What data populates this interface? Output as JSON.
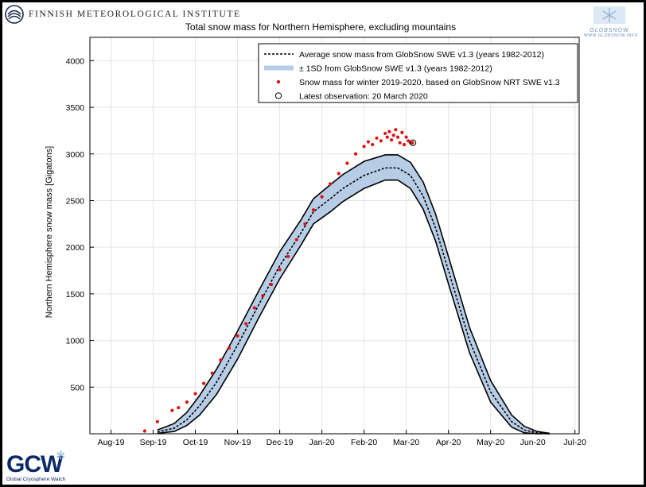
{
  "header": {
    "institute": "Finnish Meteorological Institute",
    "logo_right_name": "GLOBSNOW",
    "logo_right_url": "WWW.GLOBSNOW.INFO",
    "gcw_letters": "GCW",
    "gcw_subtitle": "Global Cryosphere Watch"
  },
  "chart_data": {
    "type": "line",
    "title": "Total snow mass for Northern Hemisphere, excluding mountains",
    "ylabel": "Northern Hemisphere snow mass [Gigatons]",
    "xlabel": "",
    "ylim": [
      0,
      4250
    ],
    "xlim": [
      0,
      11.6
    ],
    "yticks": [
      500,
      1000,
      1500,
      2000,
      2500,
      3000,
      3500,
      4000
    ],
    "xtick_labels": [
      "Aug-19",
      "Sep-19",
      "Oct-19",
      "Nov-19",
      "Dec-19",
      "Jan-20",
      "Feb-20",
      "Mar-20",
      "Apr-20",
      "May-20",
      "Jun-20",
      "Jul-20"
    ],
    "grid": true,
    "legend_position": "top-right",
    "legend": [
      {
        "label": "Average snow mass from GlobSnow SWE v1.3 (years 1982-2012)",
        "style": "dashed-line"
      },
      {
        "label": "± 1SD from GlobSnow SWE v1.3 (years 1982-2012)",
        "style": "band"
      },
      {
        "label": "Snow mass for winter 2019-2020, based on GlobSnow NRT SWE v1.3",
        "style": "red-dot"
      },
      {
        "label": "Latest observation: 20 March 2020",
        "style": "open-circle"
      }
    ],
    "colors": {
      "band": "#b7cde6",
      "mean": "#000000",
      "observed": "#dd1111",
      "grid": "#e4e4e4"
    },
    "mean": {
      "x": [
        1.6,
        2.0,
        2.3,
        2.6,
        3.0,
        3.5,
        4.0,
        4.5,
        5.0,
        5.3,
        5.7,
        6.0,
        6.5,
        7.0,
        7.3,
        7.6,
        7.9,
        8.2,
        8.5,
        9.0,
        9.5,
        10.0,
        10.3,
        10.6,
        10.9
      ],
      "y": [
        20,
        60,
        150,
        300,
        550,
        950,
        1380,
        1800,
        2150,
        2380,
        2520,
        2630,
        2770,
        2850,
        2850,
        2770,
        2550,
        2200,
        1750,
        1000,
        450,
        130,
        40,
        10,
        0
      ]
    },
    "sd": {
      "x": [
        1.6,
        2.0,
        2.3,
        2.6,
        3.0,
        3.5,
        4.0,
        4.5,
        5.0,
        5.3,
        5.7,
        6.0,
        6.5,
        7.0,
        7.3,
        7.6,
        7.9,
        8.2,
        8.5,
        9.0,
        9.5,
        10.0,
        10.3,
        10.6,
        10.9
      ],
      "upper": [
        40,
        110,
        230,
        410,
        690,
        1100,
        1530,
        1950,
        2290,
        2520,
        2670,
        2780,
        2920,
        2990,
        2990,
        2910,
        2700,
        2350,
        1900,
        1140,
        570,
        200,
        80,
        25,
        5
      ],
      "lower": [
        5,
        25,
        90,
        200,
        420,
        800,
        1240,
        1660,
        2020,
        2250,
        2380,
        2490,
        2630,
        2720,
        2720,
        2630,
        2410,
        2060,
        1610,
        870,
        340,
        70,
        10,
        0,
        0
      ]
    },
    "observed": {
      "x": [
        1.3,
        1.6,
        1.95,
        2.1,
        2.3,
        2.5,
        2.7,
        2.9,
        3.1,
        3.3,
        3.5,
        3.7,
        3.9,
        4.1,
        4.3,
        4.5,
        4.7,
        4.9,
        5.1,
        5.3,
        5.5,
        5.7,
        5.9,
        6.1,
        6.3,
        6.5,
        6.6,
        6.7,
        6.8,
        6.9,
        7.0,
        7.05,
        7.1,
        7.15,
        7.2,
        7.25,
        7.3,
        7.35,
        7.4,
        7.45,
        7.5,
        7.55,
        7.6,
        7.65
      ],
      "y": [
        30,
        130,
        250,
        280,
        340,
        430,
        540,
        650,
        790,
        920,
        1050,
        1180,
        1350,
        1480,
        1600,
        1760,
        1900,
        2080,
        2250,
        2400,
        2540,
        2680,
        2790,
        2900,
        3000,
        3080,
        3130,
        3100,
        3170,
        3140,
        3220,
        3180,
        3240,
        3150,
        3200,
        3260,
        3180,
        3120,
        3230,
        3100,
        3180,
        3140,
        3120,
        3120
      ]
    },
    "latest": {
      "x": 7.66,
      "y": 3120,
      "label": "20 March 2020"
    }
  }
}
